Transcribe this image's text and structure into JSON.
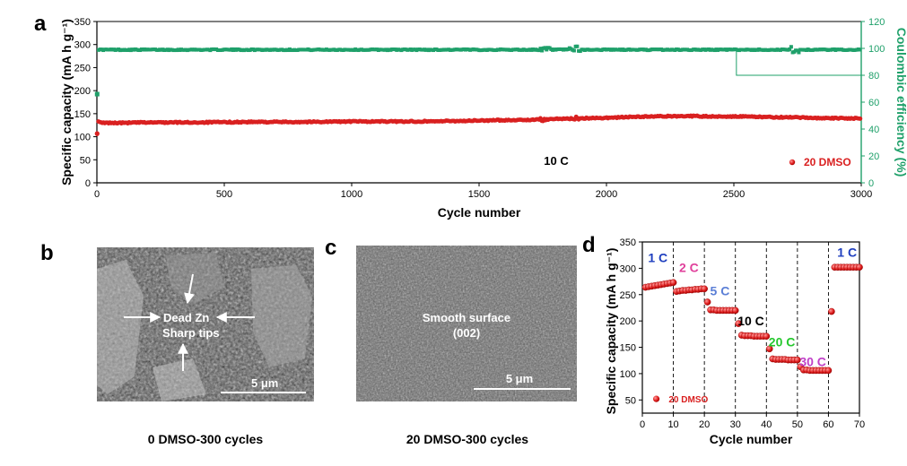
{
  "panels": {
    "a": "a",
    "b": "b",
    "c": "c",
    "d": "d"
  },
  "colors": {
    "red": "#d92020",
    "green": "#1fa06a",
    "black": "#000000"
  },
  "chart_data": [
    {
      "id": "a",
      "type": "scatter",
      "xlabel": "Cycle number",
      "ylabel": "Specific capacity (mA h g⁻¹)",
      "y2label": "Coulombic efficiency (%)",
      "xlim": [
        0,
        3000
      ],
      "ylim": [
        0,
        350
      ],
      "y2lim": [
        0,
        120
      ],
      "xticks": [
        0,
        500,
        1000,
        1500,
        2000,
        2500,
        3000
      ],
      "yticks": [
        0,
        50,
        100,
        150,
        200,
        250,
        300,
        350
      ],
      "y2ticks": [
        0,
        20,
        40,
        60,
        80,
        100,
        120
      ],
      "annotation": "10 C",
      "legend": "20 DMSO",
      "series": [
        {
          "name": "Specific capacity (20 DMSO)",
          "axis": "left",
          "x": [
            1,
            5,
            20,
            100,
            200,
            400,
            600,
            800,
            1000,
            1200,
            1400,
            1600,
            1750,
            1800,
            1900,
            2000,
            2100,
            2200,
            2300,
            2400,
            2500,
            2600,
            2700,
            2800,
            2900,
            3000
          ],
          "values": [
            107,
            132,
            130,
            130,
            131,
            131,
            132,
            132,
            133,
            133,
            134,
            136,
            137,
            139,
            140,
            141,
            143,
            144,
            145,
            144,
            144,
            143,
            142,
            141,
            140,
            140
          ]
        },
        {
          "name": "Coulombic efficiency",
          "axis": "right",
          "x": [
            1,
            5,
            20,
            100,
            300,
            500,
            1000,
            1500,
            1750,
            1870,
            2000,
            2500,
            2750,
            2900,
            3000
          ],
          "values": [
            66,
            99,
            99,
            99,
            99,
            99,
            99,
            99,
            99,
            99,
            99,
            99,
            99,
            99,
            99
          ]
        }
      ]
    },
    {
      "id": "d",
      "type": "scatter",
      "xlabel": "Cycle number",
      "ylabel": "Specific capacity (mA h g⁻¹)",
      "xlim": [
        0,
        70
      ],
      "ylim": [
        25,
        350
      ],
      "xticks": [
        0,
        10,
        20,
        30,
        40,
        50,
        60,
        70
      ],
      "yticks": [
        50,
        100,
        150,
        200,
        250,
        300,
        350
      ],
      "dividers": [
        10,
        20,
        30,
        40,
        50,
        60
      ],
      "rate_labels": [
        {
          "text": "1 C",
          "x": 5,
          "y": 312,
          "color": "#1f3fbf"
        },
        {
          "text": "2 C",
          "x": 15,
          "y": 293,
          "color": "#e0409b"
        },
        {
          "text": "5 C",
          "x": 25,
          "y": 249,
          "color": "#5b7fd6"
        },
        {
          "text": "10 C",
          "x": 35,
          "y": 192,
          "color": "#000000"
        },
        {
          "text": "20 C",
          "x": 45,
          "y": 152,
          "color": "#26c82e"
        },
        {
          "text": "30 C",
          "x": 55,
          "y": 114,
          "color": "#c040c8"
        },
        {
          "text": "1 C",
          "x": 66,
          "y": 322,
          "color": "#1f3fbf"
        }
      ],
      "legend": "20 DMSO",
      "series": [
        {
          "name": "20 DMSO",
          "x": [
            1,
            2,
            3,
            4,
            5,
            6,
            7,
            8,
            9,
            10,
            11,
            12,
            13,
            14,
            15,
            16,
            17,
            18,
            19,
            20,
            21,
            22,
            23,
            24,
            25,
            26,
            27,
            28,
            29,
            30,
            31,
            32,
            33,
            34,
            35,
            36,
            37,
            38,
            39,
            40,
            41,
            42,
            43,
            44,
            45,
            46,
            47,
            48,
            49,
            50,
            51,
            52,
            53,
            54,
            55,
            56,
            57,
            58,
            59,
            60,
            61,
            62,
            63,
            64,
            65,
            66,
            67,
            68,
            69,
            70
          ],
          "values": [
            264,
            265,
            266,
            267,
            268,
            269,
            270,
            271,
            272,
            273,
            256,
            257,
            258,
            258,
            259,
            259,
            260,
            260,
            261,
            261,
            236,
            221,
            221,
            220,
            220,
            220,
            220,
            220,
            220,
            220,
            195,
            173,
            172,
            172,
            172,
            171,
            171,
            171,
            171,
            171,
            147,
            128,
            127,
            127,
            127,
            127,
            126,
            126,
            126,
            126,
            113,
            107,
            107,
            106,
            106,
            106,
            106,
            106,
            106,
            106,
            218,
            302,
            302,
            302,
            302,
            302,
            302,
            302,
            302,
            302
          ]
        }
      ]
    }
  ],
  "sem_b": {
    "labels": [
      "Dead Zn",
      "Sharp tips"
    ],
    "scalebar": "5 μm",
    "caption": "0 DMSO-300 cycles"
  },
  "sem_c": {
    "labels": [
      "Smooth surface",
      "(002)"
    ],
    "scalebar": "5 μm",
    "caption": "20 DMSO-300 cycles"
  }
}
